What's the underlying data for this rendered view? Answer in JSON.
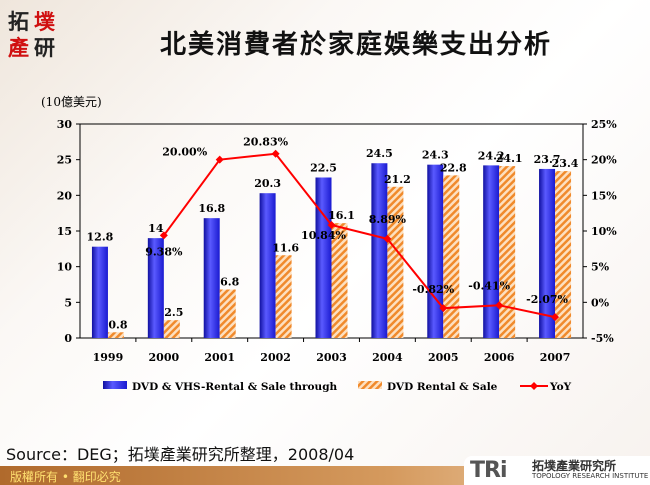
{
  "header": {
    "logo_text": [
      "拓",
      "墣",
      "產",
      "研"
    ],
    "title": "北美消費者於家庭娛樂支出分析"
  },
  "chart_data": {
    "type": "bar",
    "unit_label": "(10億美元)",
    "categories": [
      "1999",
      "2000",
      "2001",
      "2002",
      "2003",
      "2004",
      "2005",
      "2006",
      "2007"
    ],
    "ylim": [
      0,
      30
    ],
    "yticks": [
      "0",
      "5",
      "10",
      "15",
      "20",
      "25",
      "30"
    ],
    "y2lim": [
      -5,
      25
    ],
    "y2ticks": [
      "-5%",
      "0%",
      "5%",
      "10%",
      "15%",
      "20%",
      "25%"
    ],
    "series": [
      {
        "name": "DVD  & VHS-Rental & Sale  through",
        "type": "bar",
        "color": "#2a2ae0",
        "values": [
          12.8,
          14,
          16.8,
          20.3,
          22.5,
          24.5,
          24.3,
          24.2,
          23.7
        ],
        "labels": [
          "12.8",
          "14",
          "16.8",
          "20.3",
          "22.5",
          "24.5",
          "24.3",
          "24.2",
          "23.7"
        ]
      },
      {
        "name": "DVD Rental & Sale",
        "type": "bar",
        "color": "#f08a2c",
        "values": [
          0.8,
          2.5,
          6.8,
          11.6,
          16.1,
          21.2,
          22.8,
          24.1,
          23.4
        ],
        "labels": [
          "0.8",
          "2.5",
          "6.8",
          "11.6",
          "16.1",
          "21.2",
          "22.8",
          "24.1",
          "23.4"
        ]
      },
      {
        "name": "YoY",
        "type": "line",
        "axis": "right",
        "color": "#ff0000",
        "values": [
          null,
          9.38,
          20.0,
          20.83,
          10.84,
          8.89,
          -0.82,
          -0.41,
          -2.07
        ],
        "labels": [
          "",
          "9.38%",
          "20.00%",
          "20.83%",
          "10.84%",
          "8.89%",
          "-0.82%",
          "-0.41%",
          "-2.07%"
        ]
      }
    ]
  },
  "source": "Source：DEG；拓墣產業研究所整理，2008/04",
  "footer": {
    "copyright": "版權所有 • 翻印必究",
    "brand_mark": "TRi",
    "brand_cn": "拓墣產業研究所",
    "brand_en": "TOPOLOGY RESEARCH INSTITUTE"
  }
}
